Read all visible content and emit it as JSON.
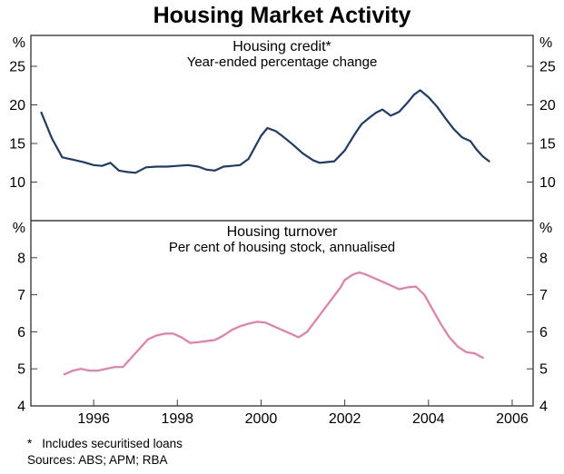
{
  "page": {
    "title": "Housing Market Activity",
    "footnote_marker": "*",
    "footnote_text": "Includes securitised loans",
    "sources": "Sources: ABS; APM; RBA"
  },
  "colors": {
    "background": "#ffffff",
    "text": "#000000",
    "frame": "#3d3d3d",
    "credit_line": "#1f3a6d",
    "turnover_line": "#e97ba6"
  },
  "x_axis": {
    "range": [
      1994.5,
      2006.5
    ],
    "ticks": [
      1996,
      1998,
      2000,
      2002,
      2004,
      2006
    ]
  },
  "chart_data": [
    {
      "type": "line",
      "title": "Housing credit*",
      "subtitle": "Year-ended percentage change",
      "unit": "%",
      "ylim": [
        5,
        29
      ],
      "yticks": [
        10,
        15,
        20,
        25
      ],
      "grid": false,
      "series": [
        {
          "name": "Housing credit",
          "color": "#1f3a6d",
          "x": [
            1994.75,
            1995.0,
            1995.25,
            1995.5,
            1995.75,
            1996.0,
            1996.2,
            1996.4,
            1996.6,
            1996.8,
            1997.0,
            1997.25,
            1997.5,
            1997.75,
            1998.0,
            1998.25,
            1998.5,
            1998.7,
            1998.9,
            1999.1,
            1999.3,
            1999.5,
            1999.7,
            1999.85,
            2000.0,
            2000.15,
            2000.35,
            2000.5,
            2000.75,
            2001.0,
            2001.25,
            2001.4,
            2001.6,
            2001.75,
            2002.0,
            2002.25,
            2002.4,
            2002.6,
            2002.75,
            2002.9,
            2003.1,
            2003.3,
            2003.5,
            2003.65,
            2003.8,
            2004.0,
            2004.2,
            2004.4,
            2004.6,
            2004.8,
            2005.0,
            2005.15,
            2005.3,
            2005.45
          ],
          "y": [
            19.0,
            15.7,
            13.2,
            12.9,
            12.6,
            12.2,
            12.1,
            12.5,
            11.5,
            11.3,
            11.2,
            11.9,
            12.0,
            12.0,
            12.1,
            12.2,
            12.0,
            11.6,
            11.5,
            12.0,
            12.1,
            12.2,
            13.0,
            14.5,
            16.0,
            17.0,
            16.6,
            16.0,
            14.9,
            13.7,
            12.8,
            12.5,
            12.6,
            12.7,
            14.1,
            16.3,
            17.5,
            18.4,
            19.0,
            19.4,
            18.6,
            19.1,
            20.3,
            21.3,
            21.9,
            21.0,
            19.8,
            18.3,
            16.9,
            15.8,
            15.3,
            14.2,
            13.3,
            12.7
          ]
        }
      ]
    },
    {
      "type": "line",
      "title": "Housing turnover",
      "subtitle": "Per cent of housing stock, annualised",
      "unit": "%",
      "ylim": [
        4,
        9
      ],
      "yticks": [
        4,
        5,
        6,
        7,
        8
      ],
      "grid": false,
      "series": [
        {
          "name": "Housing turnover",
          "color": "#e97ba6",
          "x": [
            1995.3,
            1995.5,
            1995.7,
            1995.9,
            1996.1,
            1996.3,
            1996.5,
            1996.7,
            1996.9,
            1997.1,
            1997.3,
            1997.5,
            1997.7,
            1997.9,
            1998.1,
            1998.3,
            1998.5,
            1998.7,
            1998.9,
            1999.1,
            1999.3,
            1999.5,
            1999.7,
            1999.9,
            2000.1,
            2000.3,
            2000.5,
            2000.7,
            2000.9,
            2001.1,
            2001.3,
            2001.5,
            2001.7,
            2001.9,
            2002.0,
            2002.2,
            2002.35,
            2002.5,
            2002.7,
            2002.9,
            2003.1,
            2003.3,
            2003.5,
            2003.7,
            2003.9,
            2004.1,
            2004.3,
            2004.5,
            2004.7,
            2004.9,
            2005.1,
            2005.3
          ],
          "y": [
            4.85,
            4.95,
            5.0,
            4.95,
            4.95,
            5.0,
            5.05,
            5.05,
            5.3,
            5.55,
            5.8,
            5.9,
            5.95,
            5.95,
            5.85,
            5.7,
            5.72,
            5.75,
            5.78,
            5.9,
            6.05,
            6.15,
            6.22,
            6.27,
            6.25,
            6.15,
            6.05,
            5.95,
            5.85,
            6.0,
            6.3,
            6.6,
            6.9,
            7.2,
            7.4,
            7.55,
            7.6,
            7.55,
            7.45,
            7.35,
            7.25,
            7.15,
            7.2,
            7.22,
            7.0,
            6.6,
            6.2,
            5.85,
            5.6,
            5.45,
            5.42,
            5.3
          ]
        }
      ]
    }
  ]
}
